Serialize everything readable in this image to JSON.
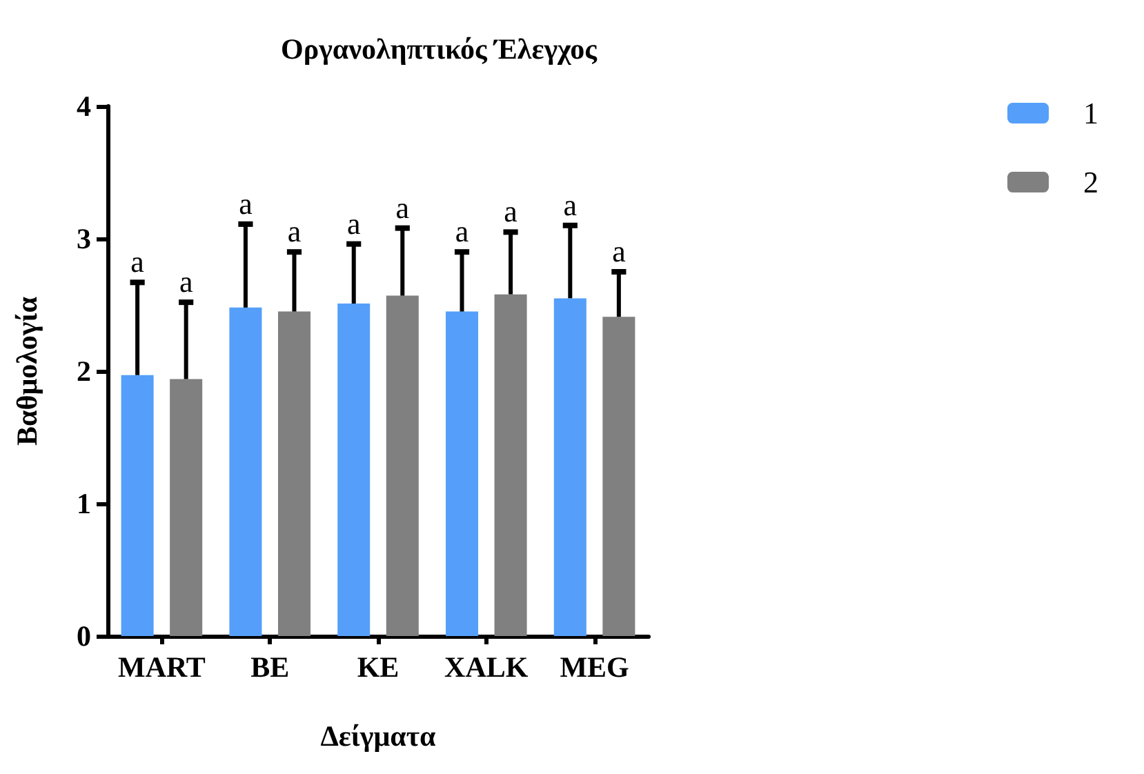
{
  "chart_data": {
    "type": "bar",
    "title": "Οργανοληπτικός Έλεγχος",
    "xlabel": "Δείγματα",
    "ylabel": "Βαθμολογία",
    "categories": [
      "MART",
      "BE",
      "KE",
      "XALK",
      "MEG"
    ],
    "series": [
      {
        "name": "1",
        "color": "#559ffa",
        "values": [
          1.97,
          2.48,
          2.51,
          2.45,
          2.55
        ],
        "errors": [
          0.7,
          0.63,
          0.45,
          0.45,
          0.55
        ]
      },
      {
        "name": "2",
        "color": "#808080",
        "values": [
          1.94,
          2.45,
          2.57,
          2.58,
          2.41
        ],
        "errors": [
          0.58,
          0.45,
          0.51,
          0.47,
          0.34
        ]
      }
    ],
    "ylim": [
      0,
      4
    ],
    "yticks": [
      0,
      1,
      2,
      3,
      4
    ],
    "grid": false,
    "legend": "top right",
    "annotations": [
      "a",
      "a",
      "a",
      "a",
      "a",
      "a",
      "a",
      "a",
      "a",
      "a"
    ]
  }
}
